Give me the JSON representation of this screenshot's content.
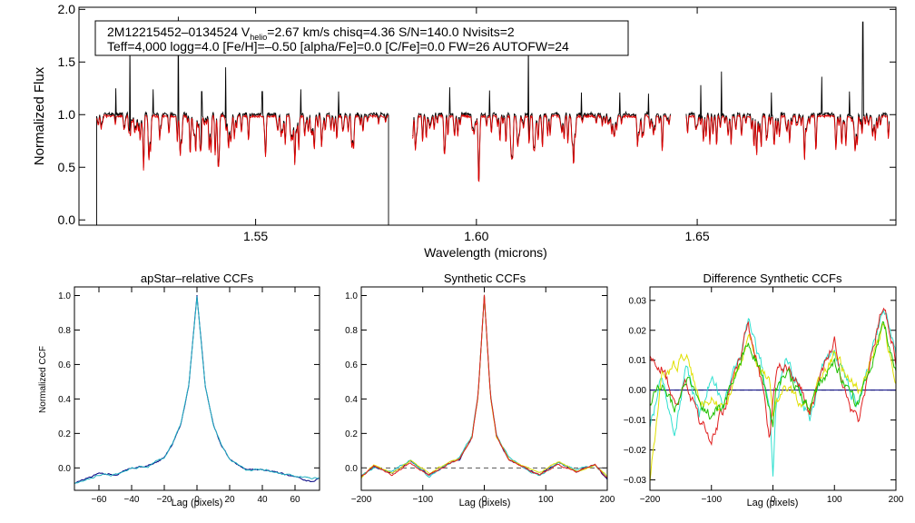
{
  "spectrum": {
    "info_line1": "2M12215452–0134524  V",
    "info_vsub": "helio",
    "info_line1b": "=2.67 km/s  chisq=4.36  S/N=140.0  Nvisits=2",
    "info_line2": "Teff=4,000 logg=4.0 [Fe/H]=–0.50 [alpha/Fe]=0.0 [C/Fe]=0.0 FW=26 AUTOFW=24",
    "ylabel": "Normalized Flux",
    "xlabel": "Wavelength (microns)"
  },
  "panels": {
    "apstar": {
      "title": "apStar–relative CCFs",
      "xlabel": "Lag (pixels)",
      "ylabel": "Normalized CCF"
    },
    "synthetic": {
      "title": "Synthetic CCFs",
      "xlabel": "Lag (pixels)"
    },
    "difference": {
      "title": "Difference Synthetic CCFs",
      "xlabel": "Lag (pixels)"
    }
  },
  "chart_data": [
    {
      "type": "line",
      "title": "",
      "xlabel": "Wavelength (microns)",
      "ylabel": "Normalized Flux",
      "xlim": [
        1.51,
        1.695
      ],
      "ylim": [
        -0.05,
        2.02
      ],
      "xticks": [
        1.55,
        1.6,
        1.65
      ],
      "xtick_labels": [
        "1.55",
        "1.60",
        "1.65"
      ],
      "yticks": [
        0.0,
        0.5,
        1.0,
        1.5,
        2.0
      ],
      "ytick_labels": [
        "0.0",
        "0.5",
        "1.0",
        "1.5",
        "2.0"
      ],
      "detector_ranges": [
        [
          1.514,
          1.5801
        ],
        [
          1.5855,
          1.644
        ],
        [
          1.6475,
          1.6935
        ]
      ],
      "emission_spikes": [
        [
          1.5183,
          1.25
        ],
        [
          1.5215,
          1.66
        ],
        [
          1.5268,
          1.24
        ],
        [
          1.5325,
          1.93
        ],
        [
          1.5378,
          1.22
        ],
        [
          1.5432,
          1.45
        ],
        [
          1.5515,
          1.22
        ],
        [
          1.5602,
          1.24
        ],
        [
          1.5688,
          1.22
        ],
        [
          1.594,
          1.26
        ],
        [
          1.603,
          1.23
        ],
        [
          1.6118,
          1.68
        ],
        [
          1.6238,
          1.21
        ],
        [
          1.6325,
          1.21
        ],
        [
          1.639,
          1.2
        ],
        [
          1.6508,
          1.28
        ],
        [
          1.6555,
          1.41
        ],
        [
          1.6668,
          1.21
        ],
        [
          1.6782,
          1.36
        ],
        [
          1.6845,
          1.22
        ],
        [
          1.6875,
          1.88
        ]
      ],
      "series": [
        {
          "name": "observed",
          "color": "#000000",
          "typical": 1.0
        },
        {
          "name": "model",
          "color": "#e00000",
          "typical": 0.97
        }
      ]
    },
    {
      "type": "line",
      "title": "apStar–relative CCFs",
      "xlabel": "Lag (pixels)",
      "ylabel": "Normalized CCF",
      "xlim": [
        -75,
        75
      ],
      "ylim": [
        -0.13,
        1.05
      ],
      "xticks": [
        -60,
        -40,
        -20,
        0,
        20,
        40,
        60
      ],
      "xtick_labels": [
        "−60",
        "−40",
        "−20",
        "0",
        "20",
        "40",
        "60"
      ],
      "yticks": [
        0.0,
        0.2,
        0.4,
        0.6,
        0.8,
        1.0
      ],
      "ytick_labels": [
        "0.0",
        "0.2",
        "0.4",
        "0.6",
        "0.8",
        "1.0"
      ],
      "series": [
        {
          "name": "ccf-1",
          "color": "#000080",
          "lag": [
            -75,
            -60,
            -50,
            -40,
            -30,
            -20,
            -15,
            -10,
            -5,
            0,
            5,
            10,
            15,
            20,
            30,
            40,
            50,
            60,
            70,
            75
          ],
          "values": [
            -0.09,
            -0.03,
            -0.04,
            0.0,
            0.01,
            0.06,
            0.14,
            0.25,
            0.48,
            1.0,
            0.48,
            0.25,
            0.13,
            0.05,
            -0.01,
            -0.01,
            -0.03,
            -0.05,
            -0.08,
            -0.06
          ]
        },
        {
          "name": "ccf-2",
          "color": "#20b0c0",
          "lag": [
            -75,
            -60,
            -50,
            -40,
            -30,
            -20,
            -15,
            -10,
            -5,
            0,
            5,
            10,
            15,
            20,
            30,
            40,
            50,
            60,
            70,
            75
          ],
          "values": [
            -0.09,
            -0.04,
            -0.04,
            0.0,
            0.01,
            0.06,
            0.14,
            0.25,
            0.48,
            1.0,
            0.48,
            0.25,
            0.13,
            0.05,
            -0.01,
            -0.01,
            -0.03,
            -0.05,
            -0.06,
            -0.06
          ]
        }
      ]
    },
    {
      "type": "line",
      "title": "Synthetic CCFs",
      "xlabel": "Lag (pixels)",
      "ylabel": "",
      "xlim": [
        -200,
        200
      ],
      "ylim": [
        -0.13,
        1.05
      ],
      "xticks": [
        -200,
        -100,
        0,
        100,
        200
      ],
      "xtick_labels": [
        "−200",
        "−100",
        "0",
        "100",
        "200"
      ],
      "yticks": [
        0.0,
        0.2,
        0.4,
        0.6,
        0.8,
        1.0
      ],
      "ytick_labels": [
        "0.0",
        "0.2",
        "0.4",
        "0.6",
        "0.8",
        "1.0"
      ],
      "reference_line": 0.0,
      "series": [
        {
          "name": "ccf-1",
          "color": "#000080",
          "lag": [
            -200,
            -180,
            -150,
            -120,
            -90,
            -60,
            -40,
            -20,
            -10,
            0,
            10,
            20,
            40,
            60,
            90,
            120,
            150,
            180,
            200
          ],
          "values": [
            -0.05,
            0.01,
            -0.03,
            0.04,
            -0.04,
            0.02,
            0.05,
            0.18,
            0.42,
            1.0,
            0.42,
            0.18,
            0.05,
            0.01,
            -0.04,
            0.03,
            -0.02,
            0.02,
            -0.07
          ]
        },
        {
          "name": "ccf-2",
          "color": "#20c0c0",
          "lag": [
            -200,
            -180,
            -150,
            -120,
            -90,
            -60,
            -40,
            -20,
            -10,
            0,
            10,
            20,
            40,
            60,
            90,
            120,
            150,
            180,
            200
          ],
          "values": [
            -0.04,
            0.0,
            -0.02,
            0.05,
            -0.05,
            0.02,
            0.06,
            0.19,
            0.43,
            1.0,
            0.43,
            0.19,
            0.06,
            0.01,
            -0.05,
            0.03,
            -0.01,
            0.02,
            -0.06
          ]
        },
        {
          "name": "ccf-3",
          "color": "#d8d800",
          "lag": [
            -200,
            -180,
            -150,
            -120,
            -90,
            -60,
            -40,
            -20,
            -10,
            0,
            10,
            20,
            40,
            60,
            90,
            120,
            150,
            180,
            200
          ],
          "values": [
            -0.06,
            0.02,
            -0.03,
            0.04,
            -0.03,
            0.03,
            0.05,
            0.18,
            0.42,
            1.0,
            0.42,
            0.18,
            0.05,
            0.02,
            -0.03,
            0.04,
            -0.02,
            0.01,
            -0.05
          ]
        },
        {
          "name": "ccf-4",
          "color": "#e02020",
          "lag": [
            -200,
            -180,
            -150,
            -120,
            -90,
            -60,
            -40,
            -20,
            -10,
            0,
            10,
            20,
            40,
            60,
            90,
            120,
            150,
            180,
            200
          ],
          "values": [
            -0.05,
            0.01,
            -0.04,
            0.03,
            -0.04,
            0.02,
            0.05,
            0.18,
            0.42,
            1.0,
            0.42,
            0.18,
            0.05,
            0.01,
            -0.04,
            0.02,
            -0.02,
            0.02,
            -0.06
          ]
        }
      ]
    },
    {
      "type": "line",
      "title": "Difference Synthetic CCFs",
      "xlabel": "Lag (pixels)",
      "ylabel": "",
      "xlim": [
        -200,
        200
      ],
      "ylim": [
        -0.0335,
        0.0345
      ],
      "xticks": [
        -200,
        -100,
        0,
        100,
        200
      ],
      "xtick_labels": [
        "−200",
        "−100",
        "0",
        "100",
        "200"
      ],
      "yticks": [
        -0.03,
        -0.02,
        -0.01,
        0.0,
        0.01,
        0.02,
        0.03
      ],
      "ytick_labels": [
        "−0.03",
        "−0.02",
        "−0.01",
        "0.00",
        "0.01",
        "0.02",
        "0.03"
      ],
      "reference_line": 0.0,
      "series": [
        {
          "name": "diff-1",
          "color": "#000080",
          "lag": [
            -200,
            200
          ],
          "values": [
            0.0,
            0.0
          ]
        },
        {
          "name": "diff-2",
          "color": "#30e0d0",
          "lag": [
            -200,
            -180,
            -160,
            -140,
            -120,
            -100,
            -80,
            -60,
            -40,
            -20,
            -5,
            0,
            5,
            20,
            40,
            60,
            80,
            100,
            120,
            140,
            160,
            180,
            200
          ],
          "values": [
            -0.012,
            0.004,
            -0.014,
            0.008,
            -0.009,
            0.005,
            -0.004,
            0.006,
            0.023,
            0.009,
            -0.004,
            -0.028,
            -0.004,
            0.01,
            0.002,
            -0.01,
            0.008,
            0.014,
            0.002,
            -0.005,
            0.012,
            0.028,
            0.012
          ]
        },
        {
          "name": "diff-3",
          "color": "#e0e000",
          "lag": [
            -200,
            -180,
            -160,
            -140,
            -120,
            -100,
            -80,
            -60,
            -40,
            -20,
            -5,
            0,
            5,
            20,
            40,
            60,
            80,
            100,
            120,
            140,
            160,
            180,
            200
          ],
          "values": [
            -0.03,
            0.004,
            0.008,
            0.012,
            -0.004,
            -0.002,
            -0.006,
            0.004,
            0.018,
            0.006,
            0.002,
            -0.008,
            -0.004,
            0.002,
            -0.004,
            -0.006,
            0.006,
            0.012,
            0.004,
            0.0,
            0.01,
            0.022,
            0.002
          ]
        },
        {
          "name": "diff-4",
          "color": "#e02020",
          "lag": [
            -200,
            -180,
            -160,
            -140,
            -120,
            -100,
            -80,
            -60,
            -40,
            -20,
            -5,
            0,
            5,
            20,
            40,
            60,
            80,
            100,
            120,
            140,
            160,
            180,
            200
          ],
          "values": [
            0.012,
            0.008,
            -0.004,
            0.002,
            -0.01,
            -0.016,
            -0.006,
            0.006,
            0.022,
            0.004,
            -0.016,
            -0.005,
            0.006,
            0.008,
            0.002,
            -0.008,
            0.006,
            0.016,
            -0.004,
            -0.012,
            0.012,
            0.03,
            0.01
          ]
        },
        {
          "name": "diff-5",
          "color": "#20c000",
          "lag": [
            -200,
            -180,
            -160,
            -140,
            -120,
            -100,
            -80,
            -60,
            -40,
            -20,
            -5,
            0,
            5,
            20,
            40,
            60,
            80,
            100,
            120,
            140,
            160,
            180,
            200
          ],
          "values": [
            -0.004,
            0.002,
            -0.006,
            0.004,
            -0.006,
            -0.008,
            -0.004,
            0.004,
            0.018,
            0.006,
            -0.006,
            -0.012,
            0.0,
            0.006,
            0.0,
            -0.006,
            0.004,
            0.01,
            0.0,
            -0.006,
            0.008,
            0.024,
            0.006
          ]
        }
      ]
    }
  ]
}
